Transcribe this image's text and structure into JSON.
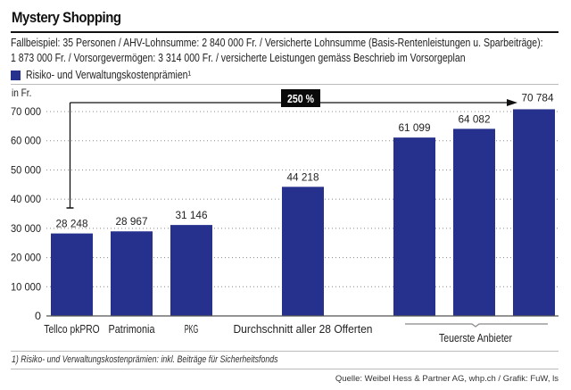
{
  "header": {
    "title": "Mystery Shopping",
    "description_line1": "Fallbeispiel: 35 Personen / AHV-Lohnsumme: 2 840 000 Fr. / Versicherte Lohnsumme (Basis-Rentenleistungen u. Sparbeiträge):",
    "description_line2": "1 873 000 Fr. / Vorsorgevermögen: 3 314 000 Fr. / versicherte Leistungen gemäss Beschrieb im Vorsorgeplan"
  },
  "footer": {
    "footnote": "1) Risiko- und Verwaltungskostenprämien: inkl. Beiträge für Sicherheitsfonds",
    "source": "Quelle: Weibel Hess & Partner AG, whp.ch / Grafik: FuW, ls"
  },
  "chart_data": {
    "type": "bar",
    "title": "Mystery Shopping",
    "ylabel": "in Fr.",
    "xlabel": "",
    "ylim": [
      0,
      70000
    ],
    "yticks": [
      0,
      10000,
      20000,
      30000,
      40000,
      50000,
      60000,
      70000
    ],
    "ytick_labels": [
      "0",
      "10 000",
      "20 000",
      "30 000",
      "40 000",
      "50 000",
      "60 000",
      "70 000"
    ],
    "grid": "horizontal-dotted",
    "legend": {
      "position": "top-left",
      "entries": [
        {
          "label": "Risiko- und Verwaltungskostenprämien¹",
          "color": "#26318d"
        }
      ]
    },
    "series": [
      {
        "name": "Risiko- und Verwaltungskostenprämien¹",
        "color": "#26318d"
      }
    ],
    "categories": [
      "Tellco pkPRO",
      "Patrimonia",
      "PKG",
      "Durchschnitt aller 28 Offerten",
      "",
      "",
      ""
    ],
    "values": [
      28248,
      28967,
      31146,
      44218,
      61099,
      64082,
      70784
    ],
    "value_labels": [
      "28 248",
      "28 967",
      "31 146",
      "44 218",
      "61 099",
      "64 082",
      "70 784"
    ],
    "group_label": {
      "text": "Teuerste Anbieter",
      "covers": [
        4,
        5,
        6
      ]
    },
    "annotation": {
      "text": "250 %",
      "from_index": 0,
      "to_index": 6
    }
  }
}
